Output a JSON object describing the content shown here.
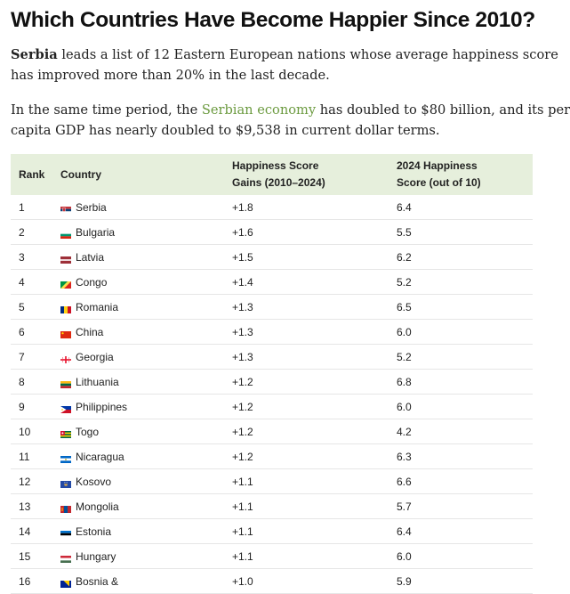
{
  "title": "Which Countries Have Become Happier Since 2010?",
  "intro": {
    "bold": "Serbia",
    "line1_rest": " leads a list of 12 Eastern European nations whose average happiness score",
    "line2": "has improved more than 20% in the last decade."
  },
  "para2": {
    "line1_before": "In the same time period, the ",
    "link": "Serbian economy",
    "line1_after": " has doubled to $80 billion, and its per",
    "line2": "capita GDP has nearly doubled to $9,538 in current dollar terms."
  },
  "table": {
    "headers": {
      "rank": "Rank",
      "country": "Country",
      "gain_l1": "Happiness Score",
      "gain_l2": "Gains (2010–2024)",
      "score_l1": "2024 Happiness",
      "score_l2": "Score (out of 10)"
    },
    "rows": [
      {
        "rank": "1",
        "country": "Serbia",
        "gain": "+1.8",
        "score": "6.4",
        "flag": "flag-serbia"
      },
      {
        "rank": "2",
        "country": "Bulgaria",
        "gain": "+1.6",
        "score": "5.5",
        "flag": "flag-bulgaria"
      },
      {
        "rank": "3",
        "country": "Latvia",
        "gain": "+1.5",
        "score": "6.2",
        "flag": "flag-latvia"
      },
      {
        "rank": "4",
        "country": "Congo",
        "gain": "+1.4",
        "score": "5.2",
        "flag": "flag-congo"
      },
      {
        "rank": "5",
        "country": "Romania",
        "gain": "+1.3",
        "score": "6.5",
        "flag": "flag-romania"
      },
      {
        "rank": "6",
        "country": "China",
        "gain": "+1.3",
        "score": "6.0",
        "flag": "flag-china"
      },
      {
        "rank": "7",
        "country": "Georgia",
        "gain": "+1.3",
        "score": "5.2",
        "flag": "flag-georgia"
      },
      {
        "rank": "8",
        "country": "Lithuania",
        "gain": "+1.2",
        "score": "6.8",
        "flag": "flag-lithuania"
      },
      {
        "rank": "9",
        "country": "Philippines",
        "gain": "+1.2",
        "score": "6.0",
        "flag": "flag-philippines"
      },
      {
        "rank": "10",
        "country": "Togo",
        "gain": "+1.2",
        "score": "4.2",
        "flag": "flag-togo"
      },
      {
        "rank": "11",
        "country": "Nicaragua",
        "gain": "+1.2",
        "score": "6.3",
        "flag": "flag-nicaragua"
      },
      {
        "rank": "12",
        "country": "Kosovo",
        "gain": "+1.1",
        "score": "6.6",
        "flag": "flag-kosovo"
      },
      {
        "rank": "13",
        "country": "Mongolia",
        "gain": "+1.1",
        "score": "5.7",
        "flag": "flag-mongolia"
      },
      {
        "rank": "14",
        "country": "Estonia",
        "gain": "+1.1",
        "score": "6.4",
        "flag": "flag-estonia"
      },
      {
        "rank": "15",
        "country": "Hungary",
        "gain": "+1.1",
        "score": "6.0",
        "flag": "flag-hungary"
      },
      {
        "rank": "16",
        "country": "Bosnia &",
        "gain": "+1.0",
        "score": "5.9",
        "flag": "flag-bosnia"
      }
    ]
  },
  "colors": {
    "header_bg": "#e6efdc",
    "link": "#6b9a3f"
  }
}
